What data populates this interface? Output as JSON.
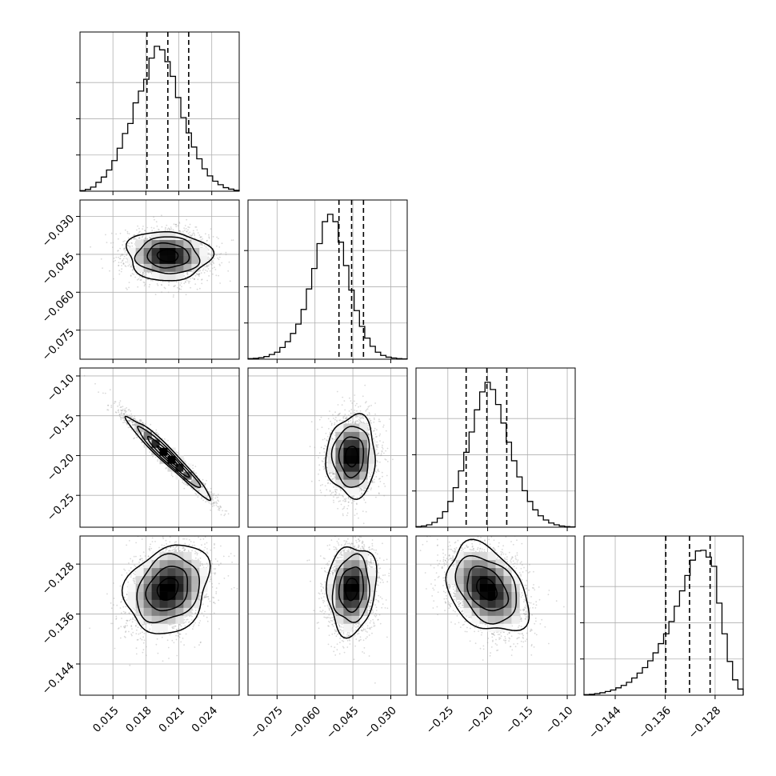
{
  "chart_data": {
    "type": "corner",
    "parameters": [
      {
        "range": [
          0.012,
          0.0265
        ],
        "ticks": [
          0.015,
          0.018,
          0.021,
          0.024
        ],
        "tick_labels": [
          "0.015",
          "0.018",
          "0.021",
          "0.024"
        ],
        "quantiles": [
          0.0181,
          0.02,
          0.0219
        ],
        "median": 0.02
      },
      {
        "range": [
          -0.0865,
          -0.0235
        ],
        "ticks": [
          -0.075,
          -0.06,
          -0.045,
          -0.03
        ],
        "tick_labels": [
          "−0.075",
          "−0.060",
          "−0.045",
          "−0.030"
        ],
        "quantiles": [
          -0.0505,
          -0.0455,
          -0.0408
        ],
        "median": -0.0455
      },
      {
        "range": [
          -0.29,
          -0.09
        ],
        "ticks": [
          -0.25,
          -0.2,
          -0.15,
          -0.1
        ],
        "tick_labels": [
          "−0.25",
          "−0.20",
          "−0.15",
          "−0.10"
        ],
        "quantiles": [
          -0.227,
          -0.201,
          -0.176
        ],
        "median": -0.201
      },
      {
        "range": [
          -0.149,
          -0.1235
        ],
        "ticks": [
          -0.144,
          -0.136,
          -0.128
        ],
        "tick_labels": [
          "−0.144",
          "−0.136",
          "−0.128"
        ],
        "quantiles": [
          -0.1359,
          -0.1321,
          -0.1288
        ],
        "median": -0.132
      }
    ],
    "hist_counts": [
      [
        2,
        6,
        14,
        30,
        48,
        72,
        104,
        146,
        196,
        230,
        300,
        340,
        380,
        452,
        492,
        480,
        440,
        390,
        318,
        250,
        198,
        150,
        110,
        76,
        52,
        34,
        22,
        12,
        7,
        3
      ],
      [
        2,
        3,
        5,
        9,
        16,
        24,
        40,
        60,
        88,
        120,
        170,
        240,
        310,
        395,
        470,
        495,
        470,
        400,
        320,
        236,
        166,
        112,
        72,
        44,
        24,
        13,
        7,
        4,
        2,
        1
      ],
      [
        2,
        4,
        8,
        16,
        30,
        52,
        86,
        132,
        188,
        250,
        318,
        392,
        452,
        484,
        460,
        410,
        348,
        284,
        222,
        168,
        122,
        86,
        58,
        38,
        24,
        14,
        8,
        4,
        2,
        1
      ],
      [
        2,
        3,
        5,
        8,
        12,
        17,
        24,
        32,
        42,
        56,
        72,
        90,
        112,
        138,
        168,
        200,
        240,
        290,
        340,
        390,
        440,
        470,
        472,
        450,
        420,
        300,
        200,
        110,
        50,
        20
      ]
    ],
    "pair_correlations": [
      {
        "row": 1,
        "col": 0,
        "rho": -0.05
      },
      {
        "row": 2,
        "col": 0,
        "rho": -0.97
      },
      {
        "row": 2,
        "col": 1,
        "rho": 0.02
      },
      {
        "row": 3,
        "col": 0,
        "rho": 0.22
      },
      {
        "row": 3,
        "col": 1,
        "rho": 0.1
      },
      {
        "row": 3,
        "col": 2,
        "rho": -0.35
      }
    ],
    "contour_levels_sigma": [
      0.5,
      1.0,
      1.5,
      2.0
    ],
    "grid": true,
    "colors": {
      "line": "#000000",
      "points": "#9a9a9a",
      "grid": "#b0b0b0"
    }
  }
}
